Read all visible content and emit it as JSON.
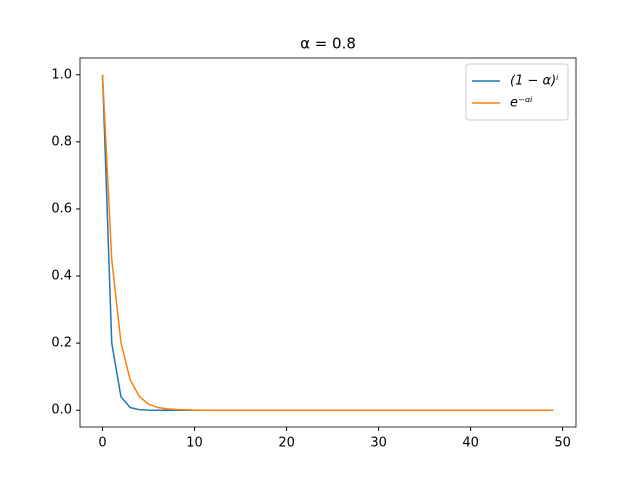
{
  "chart_data": {
    "type": "line",
    "title": "α = 0.8",
    "x": [
      0,
      1,
      2,
      3,
      4,
      5,
      6,
      7,
      8,
      9,
      10,
      11,
      12,
      13,
      14,
      15,
      16,
      17,
      18,
      19,
      20,
      21,
      22,
      23,
      24,
      25,
      26,
      27,
      28,
      29,
      30,
      31,
      32,
      33,
      34,
      35,
      36,
      37,
      38,
      39,
      40,
      41,
      42,
      43,
      44,
      45,
      46,
      47,
      48,
      49
    ],
    "series": [
      {
        "name": "(1 − α)ⁱ",
        "color": "#1f77b4",
        "values": [
          1,
          0.2,
          0.04,
          0.008,
          0.0016,
          0.0003,
          0,
          0,
          0,
          0,
          0,
          0,
          0,
          0,
          0,
          0,
          0,
          0,
          0,
          0,
          0,
          0,
          0,
          0,
          0,
          0,
          0,
          0,
          0,
          0,
          0,
          0,
          0,
          0,
          0,
          0,
          0,
          0,
          0,
          0,
          0,
          0,
          0,
          0,
          0,
          0,
          0,
          0,
          0,
          0
        ]
      },
      {
        "name": "e⁻ᵅⁱ",
        "color": "#ff7f0e",
        "values": [
          1,
          0.449,
          0.202,
          0.091,
          0.041,
          0.018,
          0.008,
          0.004,
          0.002,
          0.001,
          0.0003,
          0,
          0,
          0,
          0,
          0,
          0,
          0,
          0,
          0,
          0,
          0,
          0,
          0,
          0,
          0,
          0,
          0,
          0,
          0,
          0,
          0,
          0,
          0,
          0,
          0,
          0,
          0,
          0,
          0,
          0,
          0,
          0,
          0,
          0,
          0,
          0,
          0,
          0,
          0
        ]
      }
    ],
    "xlim": [
      -2.45,
      51.45
    ],
    "xticks": [
      0,
      10,
      20,
      30,
      40,
      50
    ],
    "ylim": [
      -0.05,
      1.05
    ],
    "yticks": [
      {
        "value": 0,
        "label": "0.0"
      },
      0.2,
      0.4,
      0.6,
      0.8,
      {
        "value": 1,
        "label": "1.0"
      }
    ],
    "legend": "upper right",
    "grid": false
  }
}
